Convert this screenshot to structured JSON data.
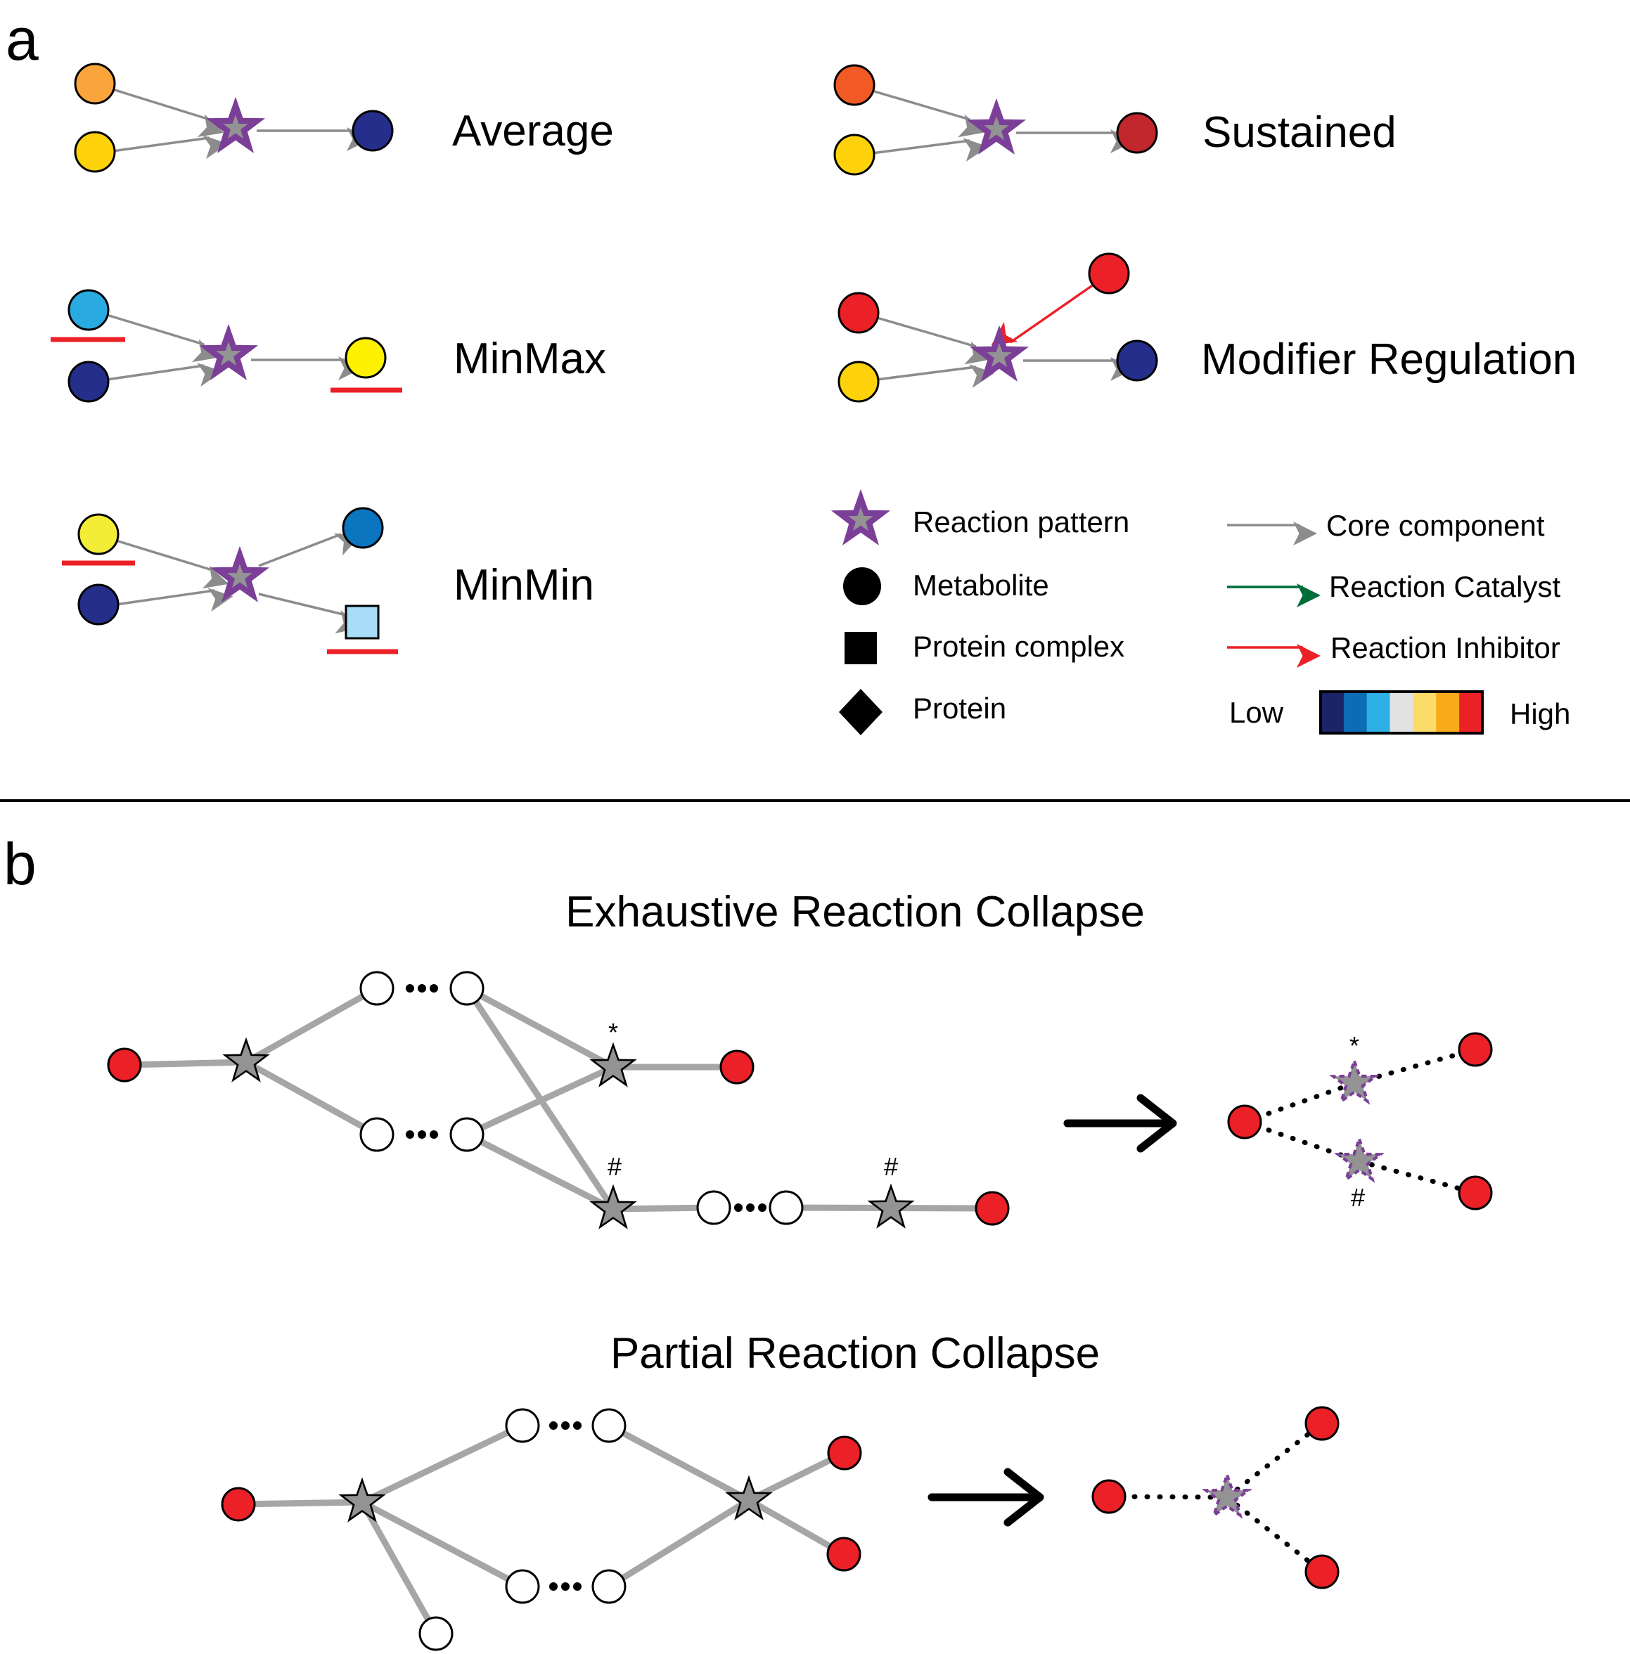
{
  "panel_a": {
    "letter": "a",
    "patterns": {
      "average": "Average",
      "sustained": "Sustained",
      "minmax": "MinMax",
      "modifier_regulation": "Modifier Regulation",
      "minmin": "MinMin"
    },
    "legend": {
      "reaction_pattern": "Reaction pattern",
      "metabolite": "Metabolite",
      "protein_complex": "Protein complex",
      "protein": "Protein",
      "core_component": "Core component",
      "reaction_catalyst": "Reaction Catalyst",
      "reaction_inhibitor": "Reaction Inhibitor",
      "scale_low": "Low",
      "scale_high": "High"
    },
    "scale_colors": [
      "#1b2466",
      "#0c6cb6",
      "#2db0e6",
      "#e2e2e2",
      "#fbdb6a",
      "#f8aa1b",
      "#ec2027"
    ]
  },
  "panel_b": {
    "letter": "b",
    "exhaustive_title": "Exhaustive Reaction Collapse",
    "partial_title": "Partial Reaction Collapse",
    "mark_star": "*",
    "mark_hash": "#"
  },
  "colors": {
    "edge_gray": "#8c8c8c",
    "collapse_edge": "#a6a6a6",
    "star_fill": "#939393",
    "star_outline": "#7b3f98",
    "inhibitor_red": "#ec2027",
    "catalyst_green": "#006c38",
    "node_red": "#ec2027",
    "high_red": "#ed1c24"
  }
}
